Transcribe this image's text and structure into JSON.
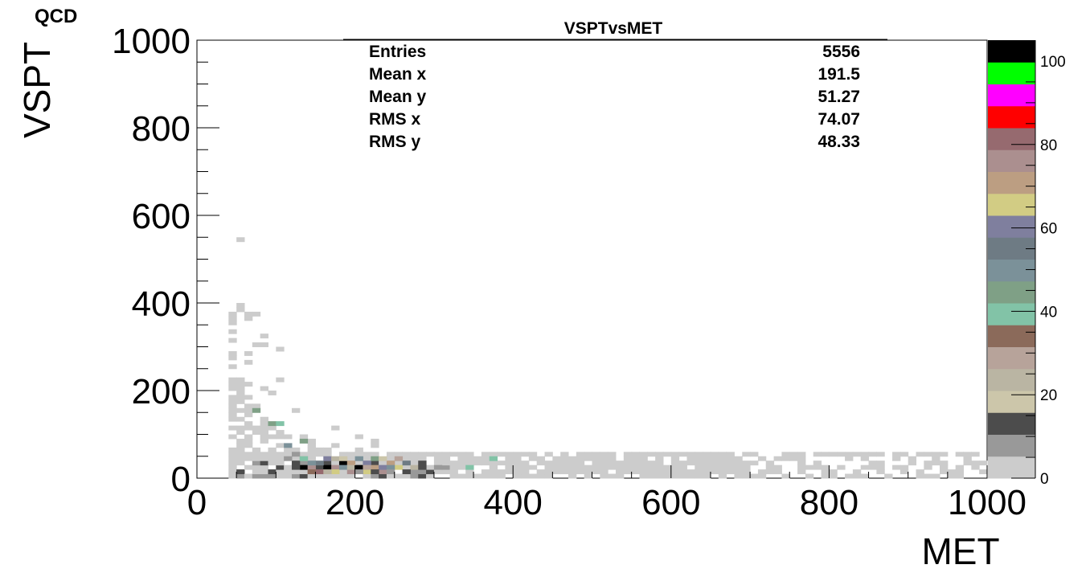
{
  "chart_data": {
    "type": "heatmap",
    "title": "VSPTvsMET",
    "xlabel": "MET",
    "ylabel": "VSPT",
    "ylabel_superscript": "QCD",
    "xlim": [
      0,
      1000
    ],
    "ylim": [
      0,
      1000
    ],
    "x_ticks": [
      0,
      200,
      400,
      600,
      800,
      1000
    ],
    "y_ticks": [
      0,
      200,
      400,
      600,
      800,
      1000
    ],
    "bin_width_x": 10,
    "bin_width_y": 10,
    "stats": [
      {
        "label": "Entries",
        "value": "5556"
      },
      {
        "label": "Mean x",
        "value": "191.5"
      },
      {
        "label": "Mean y",
        "value": "51.27"
      },
      {
        "label": "RMS x",
        "value": "74.07"
      },
      {
        "label": "RMS y",
        "value": "48.33"
      }
    ],
    "palette": {
      "zlim": [
        0,
        105
      ],
      "ticks": [
        0,
        20,
        40,
        60,
        80,
        100
      ],
      "colors": [
        "#cccccc",
        "#999999",
        "#4c4c4c",
        "#ccc6aa",
        "#bab5a3",
        "#b7a39a",
        "#8b6a5a",
        "#82c3a7",
        "#7fa086",
        "#7b9199",
        "#6e7b84",
        "#7f7f9e",
        "#d2cc84",
        "#bc9e82",
        "#ab8f8f",
        "#966a6f",
        "#ff0000",
        "#ff00ff",
        "#00ff00",
        "#000000"
      ]
    },
    "bins": [
      {
        "x": 135,
        "y": 25,
        "z": 100
      },
      {
        "x": 165,
        "y": 25,
        "z": 100
      },
      {
        "x": 185,
        "y": 35,
        "z": 100
      },
      {
        "x": 205,
        "y": 25,
        "z": 100
      },
      {
        "x": 145,
        "y": 25,
        "z": 75
      },
      {
        "x": 175,
        "y": 25,
        "z": 75
      },
      {
        "x": 195,
        "y": 35,
        "z": 70
      },
      {
        "x": 225,
        "y": 25,
        "z": 72
      },
      {
        "x": 245,
        "y": 35,
        "z": 70
      },
      {
        "x": 155,
        "y": 15,
        "z": 80
      },
      {
        "x": 175,
        "y": 15,
        "z": 68
      },
      {
        "x": 195,
        "y": 15,
        "z": 78
      },
      {
        "x": 215,
        "y": 15,
        "z": 68
      },
      {
        "x": 235,
        "y": 15,
        "z": 75
      },
      {
        "x": 255,
        "y": 25,
        "z": 66
      },
      {
        "x": 155,
        "y": 35,
        "z": 55
      },
      {
        "x": 165,
        "y": 45,
        "z": 60
      },
      {
        "x": 215,
        "y": 35,
        "z": 58
      },
      {
        "x": 235,
        "y": 25,
        "z": 62
      },
      {
        "x": 265,
        "y": 35,
        "z": 55
      },
      {
        "x": 145,
        "y": 35,
        "z": 48
      },
      {
        "x": 185,
        "y": 25,
        "z": 50
      },
      {
        "x": 205,
        "y": 45,
        "z": 52
      },
      {
        "x": 225,
        "y": 45,
        "z": 46
      },
      {
        "x": 245,
        "y": 25,
        "z": 50
      },
      {
        "x": 135,
        "y": 45,
        "z": 30
      },
      {
        "x": 145,
        "y": 15,
        "z": 32
      },
      {
        "x": 175,
        "y": 45,
        "z": 25
      },
      {
        "x": 195,
        "y": 25,
        "z": 22
      },
      {
        "x": 215,
        "y": 25,
        "z": 28
      },
      {
        "x": 255,
        "y": 45,
        "z": 27
      },
      {
        "x": 275,
        "y": 25,
        "z": 24
      },
      {
        "x": 165,
        "y": 15,
        "z": 26
      },
      {
        "x": 125,
        "y": 35,
        "z": 15
      },
      {
        "x": 125,
        "y": 25,
        "z": 12
      },
      {
        "x": 185,
        "y": 45,
        "z": 16
      },
      {
        "x": 235,
        "y": 45,
        "z": 18
      },
      {
        "x": 265,
        "y": 15,
        "z": 14
      },
      {
        "x": 285,
        "y": 25,
        "z": 12
      },
      {
        "x": 225,
        "y": 15,
        "z": 13
      },
      {
        "x": 115,
        "y": 45,
        "z": 10
      },
      {
        "x": 285,
        "y": 35,
        "z": 11
      },
      {
        "x": 245,
        "y": 15,
        "z": 9
      },
      {
        "x": 305,
        "y": 25,
        "z": 9
      },
      {
        "x": 125,
        "y": 55,
        "z": 8
      },
      {
        "x": 205,
        "y": 15,
        "z": 9
      },
      {
        "x": 345,
        "y": 25,
        "z": 40
      },
      {
        "x": 375,
        "y": 45,
        "z": 40
      },
      {
        "x": 95,
        "y": 125,
        "z": 42
      },
      {
        "x": 105,
        "y": 125,
        "z": 40
      },
      {
        "x": 135,
        "y": 85,
        "z": 45
      },
      {
        "x": 135,
        "y": 45,
        "z": 40
      },
      {
        "x": 75,
        "y": 155,
        "z": 46
      },
      {
        "x": 115,
        "y": 75,
        "z": 48
      }
    ],
    "sparse_counts": [
      [
        0,
        0,
        0,
        0,
        0,
        0,
        0,
        0,
        0,
        0,
        0,
        0,
        0,
        0,
        0,
        0,
        0,
        0,
        0,
        0,
        0,
        0,
        0,
        0,
        0,
        0,
        0,
        0,
        0,
        0,
        0,
        0,
        0,
        0,
        0,
        0,
        0,
        0,
        0,
        0,
        0,
        0,
        0,
        0,
        0,
        0,
        0,
        0,
        0,
        0,
        0,
        0,
        0,
        0,
        0,
        0,
        0,
        0,
        0,
        0,
        0,
        0,
        0,
        0,
        0,
        0,
        0,
        0,
        0,
        0,
        0,
        0,
        0,
        0,
        0,
        0,
        0,
        0,
        0,
        0,
        0,
        0,
        0,
        0,
        0,
        0,
        0,
        0,
        0,
        0,
        0,
        0,
        0,
        0,
        0,
        0,
        0,
        0,
        0,
        0
      ]
    ]
  }
}
